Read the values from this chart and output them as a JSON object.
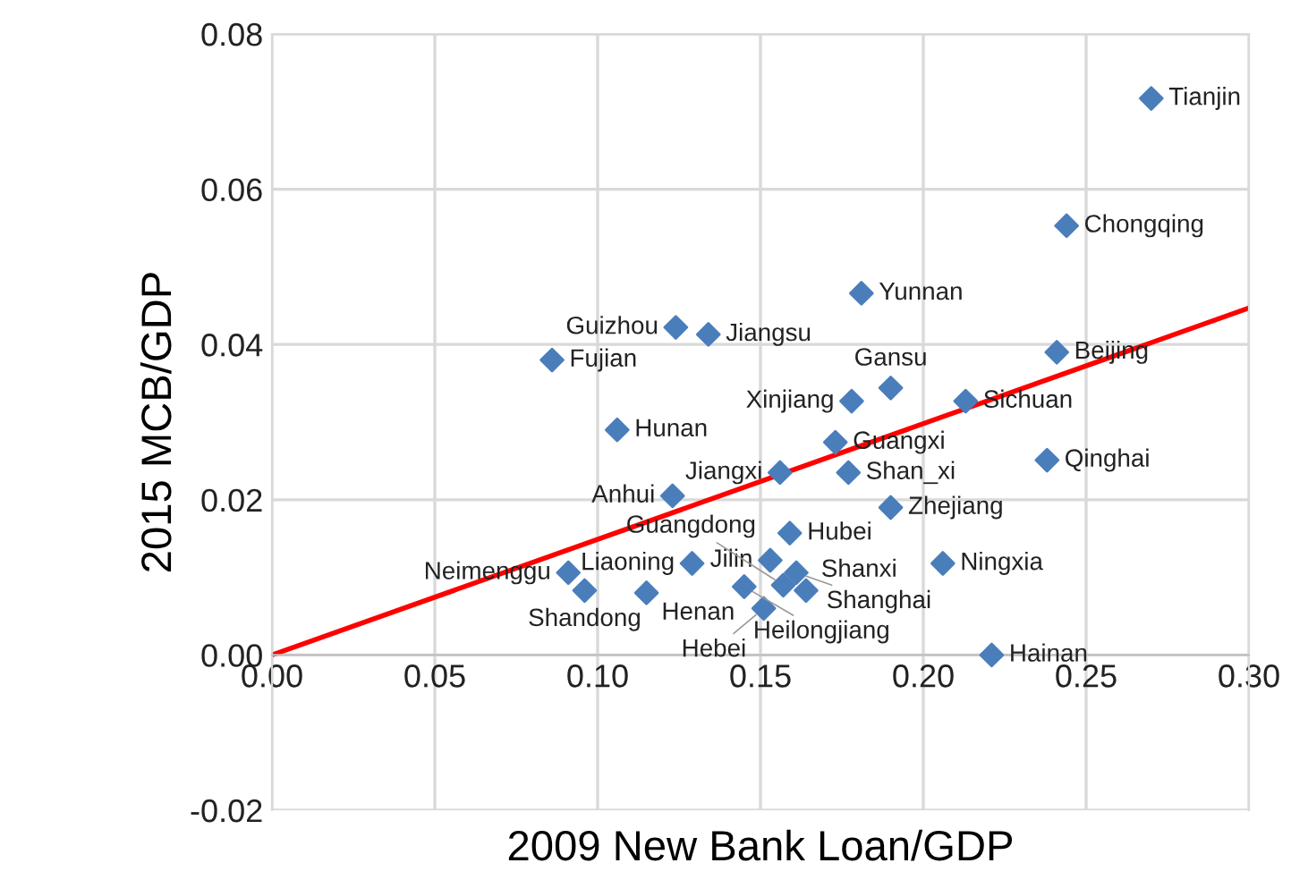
{
  "chart_data": {
    "type": "scatter",
    "xlabel": "2009 New Bank Loan/GDP",
    "ylabel": "2015 MCB/GDP",
    "xlim": [
      0,
      0.3
    ],
    "xticks": [
      {
        "value": 0,
        "label": "0.00"
      },
      0.05,
      {
        "value": 0.1,
        "label": "0.10"
      },
      0.15,
      {
        "value": 0.2,
        "label": "0.20"
      },
      0.25,
      {
        "value": 0.3,
        "label": "0.30"
      }
    ],
    "ylim": [
      -0.02,
      0.08
    ],
    "yticks": [
      -0.02,
      {
        "value": 0,
        "label": "0.00"
      },
      0.02,
      0.04,
      0.06,
      0.08
    ],
    "grid": true,
    "marker": "diamond",
    "series": [
      {
        "type": "scatter",
        "color": "#4a7ebb",
        "x": [
          0.27,
          0.244,
          0.181,
          0.124,
          0.134,
          0.086,
          0.241,
          0.19,
          0.178,
          0.213,
          0.106,
          0.173,
          0.156,
          0.177,
          0.238,
          0.123,
          0.19,
          0.159,
          0.091,
          0.096,
          0.115,
          0.129,
          0.153,
          0.145,
          0.157,
          0.161,
          0.164,
          0.151,
          0.206,
          0.221
        ],
        "values": [
          0.0717,
          0.0553,
          0.0466,
          0.0422,
          0.0413,
          0.038,
          0.039,
          0.0344,
          0.0327,
          0.0327,
          0.029,
          0.0274,
          0.0235,
          0.0235,
          0.0251,
          0.0205,
          0.019,
          0.0157,
          0.0106,
          0.0083,
          0.008,
          0.0118,
          0.0122,
          0.0088,
          0.009,
          0.0106,
          0.0083,
          0.006,
          0.0118,
          0.0
        ]
      },
      {
        "type": "line",
        "color": "#ff0000",
        "x": [
          0,
          0.3
        ],
        "values": [
          0,
          0.0447
        ],
        "marker": "none"
      }
    ],
    "annotations": [
      {
        "text": "Tianjin",
        "x": 0.27,
        "y": 0.0717
      },
      {
        "text": "Chongqing",
        "x": 0.244,
        "y": 0.0553
      },
      {
        "text": "Yunnan",
        "x": 0.181,
        "y": 0.0466
      },
      {
        "text": "Guizhou",
        "x": 0.124,
        "y": 0.0422
      },
      {
        "text": "Jiangsu",
        "x": 0.134,
        "y": 0.0413
      },
      {
        "text": "Fujian",
        "x": 0.086,
        "y": 0.038
      },
      {
        "text": "Beijing",
        "x": 0.241,
        "y": 0.039
      },
      {
        "text": "Gansu",
        "x": 0.19,
        "y": 0.0344
      },
      {
        "text": "Xinjiang",
        "x": 0.178,
        "y": 0.0327
      },
      {
        "text": "Sichuan",
        "x": 0.213,
        "y": 0.0327
      },
      {
        "text": "Hunan",
        "x": 0.106,
        "y": 0.029
      },
      {
        "text": "Guangxi",
        "x": 0.173,
        "y": 0.0274
      },
      {
        "text": "Jiangxi",
        "x": 0.156,
        "y": 0.0235
      },
      {
        "text": "Shan_xi",
        "x": 0.177,
        "y": 0.0235
      },
      {
        "text": "Qinghai",
        "x": 0.238,
        "y": 0.0251
      },
      {
        "text": "Anhui",
        "x": 0.123,
        "y": 0.0205
      },
      {
        "text": "Zhejiang",
        "x": 0.19,
        "y": 0.019
      },
      {
        "text": "Hubei",
        "x": 0.159,
        "y": 0.0157
      },
      {
        "text": "Neimenggu",
        "x": 0.091,
        "y": 0.0106
      },
      {
        "text": "Shandong",
        "x": 0.096,
        "y": 0.0083
      },
      {
        "text": "Henan",
        "x": 0.115,
        "y": 0.008
      },
      {
        "text": "Liaoning",
        "x": 0.129,
        "y": 0.0118
      },
      {
        "text": "Jilin",
        "x": 0.153,
        "y": 0.0122
      },
      {
        "text": "Heilongjiang",
        "x": 0.145,
        "y": 0.0088
      },
      {
        "text": "Guangdong",
        "x": 0.157,
        "y": 0.009
      },
      {
        "text": "Shanghai",
        "x": 0.161,
        "y": 0.0106
      },
      {
        "text": "Shanxi",
        "x": 0.164,
        "y": 0.0083
      },
      {
        "text": "Hebei",
        "x": 0.151,
        "y": 0.006
      },
      {
        "text": "Ningxia",
        "x": 0.206,
        "y": 0.0118
      },
      {
        "text": "Hainan",
        "x": 0.221,
        "y": 0.0
      }
    ]
  }
}
